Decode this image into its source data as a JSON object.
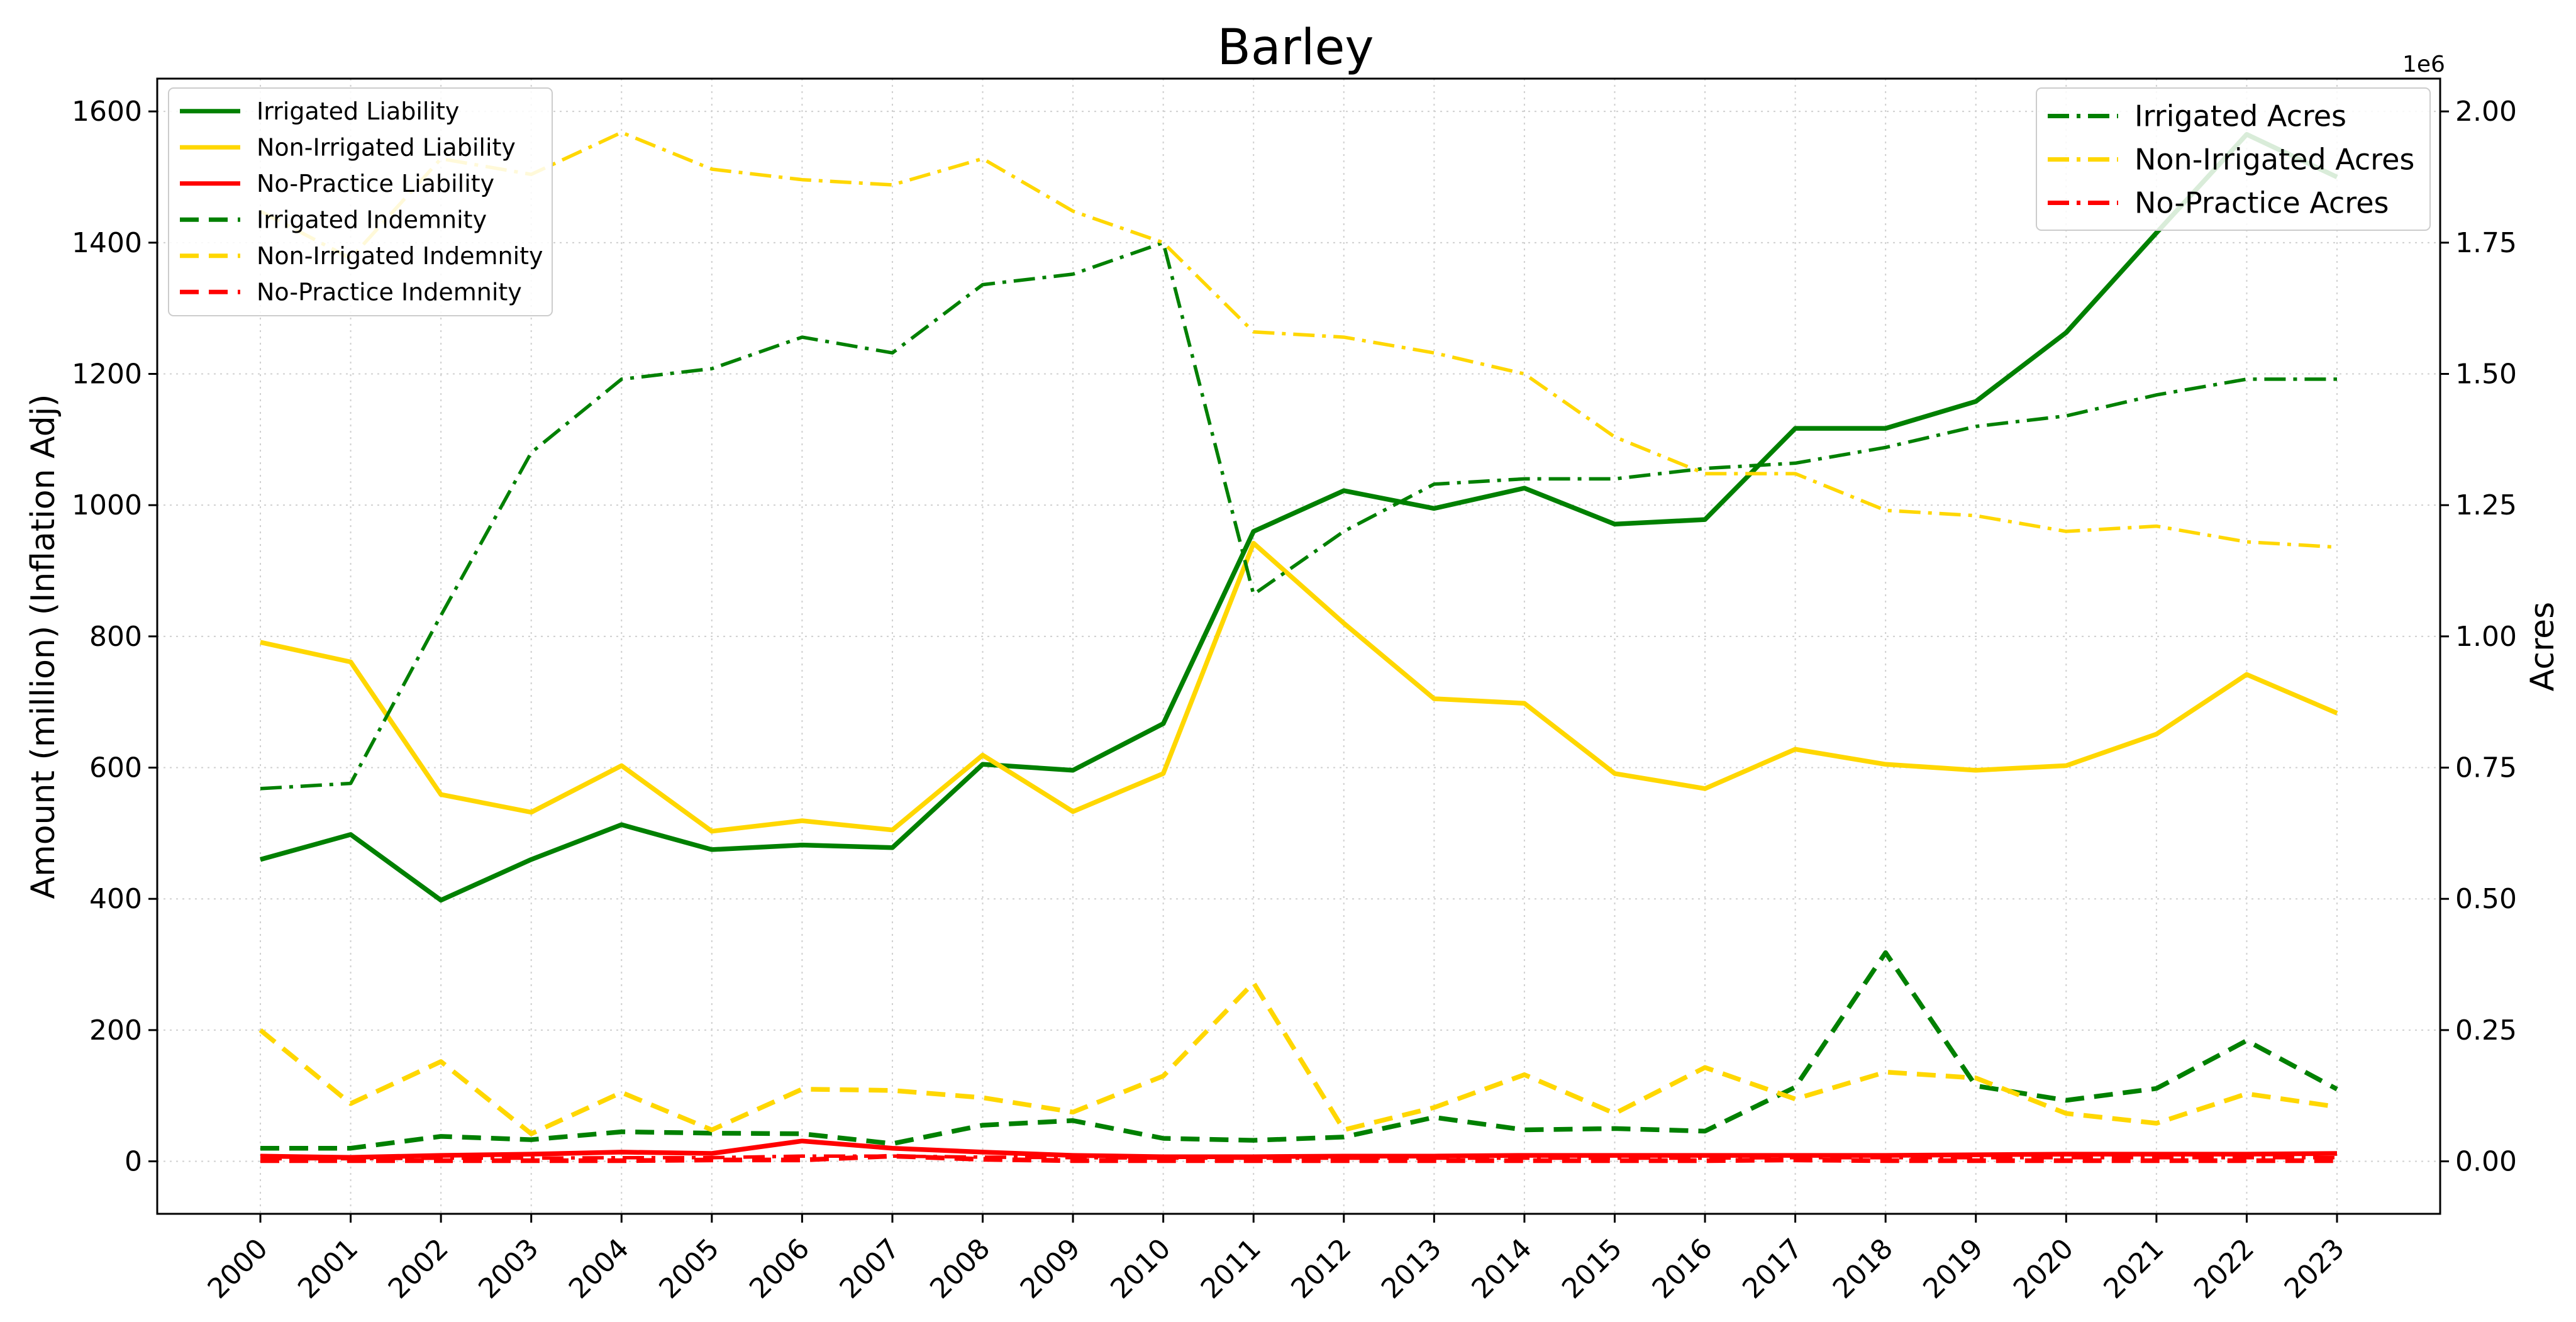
{
  "chart_data": {
    "type": "line",
    "title": "Barley",
    "xlabel": "",
    "ylabel_left": "Amount (million) (Inflation Adj)",
    "ylabel_right": "Acres",
    "right_axis_offset_label": "1e6",
    "ylim_left": [
      -80,
      1650
    ],
    "ylim_right": [
      -0.1,
      2.0625
    ],
    "left_ticks": [
      0,
      200,
      400,
      600,
      800,
      1000,
      1200,
      1400,
      1600
    ],
    "right_ticks": [
      "0.00",
      "0.25",
      "0.50",
      "0.75",
      "1.00",
      "1.25",
      "1.50",
      "1.75",
      "2.00"
    ],
    "grid": true,
    "legend_left_position": "upper-left",
    "legend_right_position": "upper-right",
    "categories": [
      "2000",
      "2001",
      "2002",
      "2003",
      "2004",
      "2005",
      "2006",
      "2007",
      "2008",
      "2009",
      "2010",
      "2011",
      "2012",
      "2013",
      "2014",
      "2015",
      "2016",
      "2017",
      "2018",
      "2019",
      "2020",
      "2021",
      "2022",
      "2023"
    ],
    "series": [
      {
        "name": "Irrigated Liability",
        "axis": "left",
        "color": "#008000",
        "style": "solid",
        "values": [
          460,
          498,
          398,
          460,
          513,
          475,
          482,
          478,
          605,
          596,
          667,
          960,
          1022,
          995,
          1026,
          971,
          978,
          1117,
          1117,
          1158,
          1263,
          1415,
          1565,
          1500
        ]
      },
      {
        "name": "Non-Irrigated Liability",
        "axis": "left",
        "color": "#FFD700",
        "style": "solid",
        "values": [
          791,
          761,
          559,
          532,
          603,
          503,
          519,
          505,
          619,
          533,
          591,
          942,
          820,
          705,
          698,
          591,
          568,
          628,
          605,
          596,
          603,
          651,
          742,
          683
        ]
      },
      {
        "name": "No-Practice Liability",
        "axis": "left",
        "color": "#FF0000",
        "style": "solid",
        "values": [
          8,
          6,
          9,
          11,
          14,
          12,
          31,
          20,
          14,
          9,
          7,
          7,
          8,
          8,
          9,
          9,
          9,
          9,
          9,
          10,
          11,
          11,
          11,
          12
        ]
      },
      {
        "name": "Irrigated Indemnity",
        "axis": "left",
        "color": "#008000",
        "style": "dashed",
        "values": [
          20,
          20,
          38,
          33,
          45,
          43,
          42,
          27,
          55,
          62,
          35,
          32,
          37,
          67,
          48,
          50,
          46,
          113,
          318,
          115,
          93,
          111,
          184,
          110
        ]
      },
      {
        "name": "Non-Irrigated Indemnity",
        "axis": "left",
        "color": "#FFD700",
        "style": "dashed",
        "values": [
          200,
          88,
          152,
          42,
          105,
          48,
          110,
          108,
          97,
          75,
          130,
          272,
          48,
          82,
          132,
          73,
          143,
          95,
          136,
          127,
          73,
          58,
          103,
          83
        ]
      },
      {
        "name": "No-Practice Indemnity",
        "axis": "left",
        "color": "#FF0000",
        "style": "dashed",
        "values": [
          1,
          1,
          1,
          1,
          1,
          2,
          2,
          8,
          3,
          1,
          1,
          1,
          1,
          1,
          1,
          1,
          1,
          2,
          1,
          1,
          1,
          1,
          1,
          1
        ]
      },
      {
        "name": "Irrigated Acres",
        "axis": "right",
        "color": "#008000",
        "style": "dashdot",
        "values": [
          0.71,
          0.72,
          1.04,
          1.35,
          1.49,
          1.51,
          1.57,
          1.54,
          1.67,
          1.69,
          1.75,
          1.08,
          1.2,
          1.29,
          1.3,
          1.3,
          1.32,
          1.33,
          1.36,
          1.4,
          1.42,
          1.46,
          1.49,
          1.49
        ]
      },
      {
        "name": "Non-Irrigated Acres",
        "axis": "right",
        "color": "#FFD700",
        "style": "dashdot",
        "values": [
          1.81,
          1.72,
          1.91,
          1.88,
          1.96,
          1.89,
          1.87,
          1.86,
          1.91,
          1.81,
          1.75,
          1.58,
          1.57,
          1.54,
          1.5,
          1.38,
          1.31,
          1.31,
          1.24,
          1.23,
          1.2,
          1.21,
          1.18,
          1.17
        ]
      },
      {
        "name": "No-Practice Acres",
        "axis": "right",
        "color": "#FF0000",
        "style": "dashdot",
        "values": [
          0.005,
          0.005,
          0.006,
          0.006,
          0.007,
          0.007,
          0.01,
          0.01,
          0.008,
          0.007,
          0.006,
          0.006,
          0.006,
          0.006,
          0.006,
          0.006,
          0.006,
          0.007,
          0.007,
          0.007,
          0.007,
          0.007,
          0.007,
          0.007
        ]
      }
    ]
  }
}
